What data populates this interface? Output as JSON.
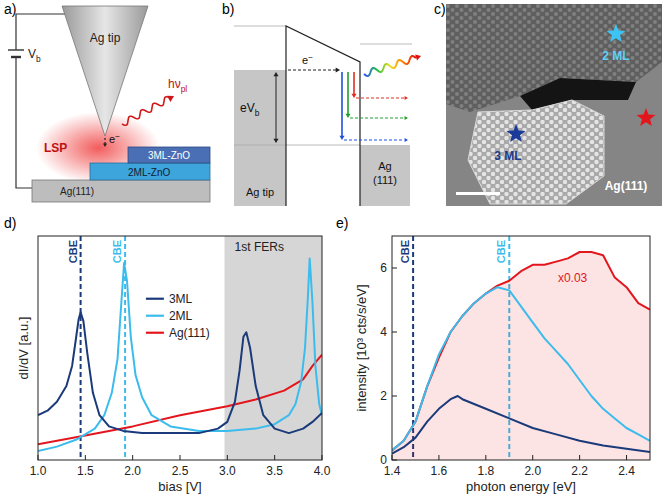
{
  "panels": {
    "a": {
      "label": "a)",
      "tip": "Ag tip",
      "bias": {
        "text": "V",
        "sub": "b"
      },
      "photon": {
        "text": "hν",
        "sub": "pl"
      },
      "plasmon": "LSP",
      "electron": {
        "text": "e",
        "sup": "−"
      },
      "layer3": "3ML-ZnO",
      "layer2": "2ML-ZnO",
      "substrate": "Ag(111)"
    },
    "b": {
      "label": "b)",
      "electron": {
        "text": "e",
        "sup": "−"
      },
      "bias": {
        "text": "eV",
        "sub": "b"
      },
      "tip": "Ag tip",
      "sample": [
        "Ag",
        "(111)"
      ]
    },
    "c": {
      "label": "c)",
      "regions": [
        "2 ML",
        "3 ML",
        "Ag(111)"
      ]
    },
    "d": {
      "label": "d)"
    },
    "e": {
      "label": "e)"
    }
  },
  "chart_data": [
    {
      "type": "line",
      "x_label": "bias [V]",
      "y_label": "dI/dV [a.u.]",
      "xlim": [
        1,
        4
      ],
      "xticks": [
        {
          "value": 1,
          "label": "1.0"
        },
        {
          "value": 1.5,
          "label": "1.5"
        },
        {
          "value": 2,
          "label": "2.0"
        },
        {
          "value": 2.5,
          "label": "2.5"
        },
        {
          "value": 3,
          "label": "3.0"
        },
        {
          "value": 3.5,
          "label": "3.5"
        },
        {
          "value": 4,
          "label": "4.0"
        }
      ],
      "ylim": [
        0,
        1
      ],
      "tick_labels": "x",
      "legend": "upper center",
      "series": [
        {
          "name": "3ML",
          "color": "#1b3a7a",
          "x": [
            1.0,
            1.1,
            1.2,
            1.3,
            1.36,
            1.4,
            1.43,
            1.45,
            1.48,
            1.52,
            1.58,
            1.65,
            1.75,
            1.9,
            2.1,
            2.4,
            2.7,
            2.9,
            3.0,
            3.08,
            3.13,
            3.17,
            3.2,
            3.24,
            3.3,
            3.38,
            3.5,
            3.65,
            3.8,
            3.9,
            4.0
          ],
          "values": [
            0.2,
            0.22,
            0.26,
            0.33,
            0.42,
            0.54,
            0.63,
            0.66,
            0.62,
            0.48,
            0.3,
            0.2,
            0.15,
            0.13,
            0.12,
            0.12,
            0.12,
            0.14,
            0.17,
            0.26,
            0.4,
            0.55,
            0.57,
            0.5,
            0.33,
            0.2,
            0.14,
            0.12,
            0.14,
            0.17,
            0.21
          ]
        },
        {
          "name": "2ML",
          "color": "#3cbcec",
          "x": [
            1.0,
            1.2,
            1.4,
            1.6,
            1.7,
            1.78,
            1.84,
            1.88,
            1.91,
            1.94,
            1.98,
            2.03,
            2.1,
            2.2,
            2.4,
            2.7,
            3.0,
            3.3,
            3.5,
            3.65,
            3.72,
            3.78,
            3.82,
            3.85,
            3.87,
            3.9,
            3.93,
            3.97,
            4.0
          ],
          "values": [
            0.04,
            0.06,
            0.09,
            0.14,
            0.2,
            0.3,
            0.45,
            0.7,
            0.88,
            0.8,
            0.55,
            0.38,
            0.28,
            0.2,
            0.15,
            0.13,
            0.13,
            0.14,
            0.16,
            0.2,
            0.25,
            0.35,
            0.5,
            0.72,
            0.9,
            0.7,
            0.42,
            0.25,
            0.2
          ]
        },
        {
          "name": "Ag(111)",
          "color": "#e3161d",
          "x": [
            1.0,
            1.5,
            2.0,
            2.5,
            3.0,
            3.3,
            3.6,
            3.8,
            3.9,
            4.0
          ],
          "values": [
            0.07,
            0.11,
            0.15,
            0.2,
            0.24,
            0.27,
            0.31,
            0.36,
            0.42,
            0.47
          ]
        }
      ],
      "annotations": [
        {
          "text": "CBE",
          "x": 1.45,
          "color": "#1b3a7a",
          "line_style": "dashed"
        },
        {
          "text": "CBE",
          "x": 1.92,
          "color": "#3cbcec",
          "line_style": "dashed"
        }
      ],
      "shaded_region": {
        "text": "1st FERs",
        "x": [
          2.97,
          4.0
        ]
      }
    },
    {
      "type": "line",
      "x_label": "photon energy [eV]",
      "y_label": "intensity [10³ cts/s/eV]",
      "xlim": [
        1.4,
        2.5
      ],
      "xticks": [
        1.4,
        1.6,
        1.8,
        {
          "value": 2,
          "label": "2.0"
        },
        2.2,
        2.4
      ],
      "ylim": [
        0,
        7
      ],
      "yticks": [
        0,
        2,
        4,
        6
      ],
      "series": [
        {
          "color": "#1b3a7a",
          "x": [
            1.4,
            1.45,
            1.5,
            1.55,
            1.6,
            1.65,
            1.68,
            1.7,
            1.75,
            1.8,
            1.9,
            2.0,
            2.1,
            2.2,
            2.3,
            2.4,
            2.5
          ],
          "values": [
            0.2,
            0.4,
            0.7,
            1.2,
            1.6,
            1.9,
            2.0,
            1.9,
            1.75,
            1.6,
            1.3,
            1.0,
            0.8,
            0.6,
            0.45,
            0.35,
            0.25
          ]
        },
        {
          "color": "#3cbcec",
          "x": [
            1.4,
            1.45,
            1.5,
            1.55,
            1.6,
            1.65,
            1.7,
            1.75,
            1.8,
            1.85,
            1.9,
            1.95,
            2.0,
            2.05,
            2.1,
            2.15,
            2.2,
            2.25,
            2.3,
            2.35,
            2.4,
            2.45,
            2.5
          ],
          "values": [
            0.3,
            0.6,
            1.2,
            2.3,
            3.3,
            4.0,
            4.5,
            4.9,
            5.2,
            5.4,
            5.3,
            4.8,
            4.3,
            3.8,
            3.4,
            3.0,
            2.5,
            2.0,
            1.6,
            1.3,
            1.0,
            0.8,
            0.6
          ]
        },
        {
          "color": "#e3161d",
          "type": "area",
          "x": [
            1.4,
            1.45,
            1.5,
            1.55,
            1.6,
            1.65,
            1.7,
            1.75,
            1.8,
            1.85,
            1.9,
            1.95,
            2.0,
            2.05,
            2.1,
            2.15,
            2.2,
            2.25,
            2.3,
            2.35,
            2.4,
            2.45,
            2.5
          ],
          "values": [
            0.3,
            0.6,
            1.2,
            2.3,
            3.2,
            4.0,
            4.5,
            4.9,
            5.2,
            5.45,
            5.6,
            5.9,
            6.1,
            6.1,
            6.2,
            6.3,
            6.5,
            6.5,
            6.4,
            5.7,
            5.4,
            4.9,
            4.7
          ]
        }
      ],
      "annotations": [
        {
          "text": "CBE",
          "x": 1.49,
          "color": "#1b3a7a",
          "line_style": "dashed"
        },
        {
          "text": "CBE",
          "x": 1.9,
          "color": "#3cbcec",
          "line_style": "dashed"
        },
        {
          "text": "x0.03",
          "x": 2.17,
          "y": 5.55,
          "color": "#e3161d"
        }
      ]
    }
  ]
}
